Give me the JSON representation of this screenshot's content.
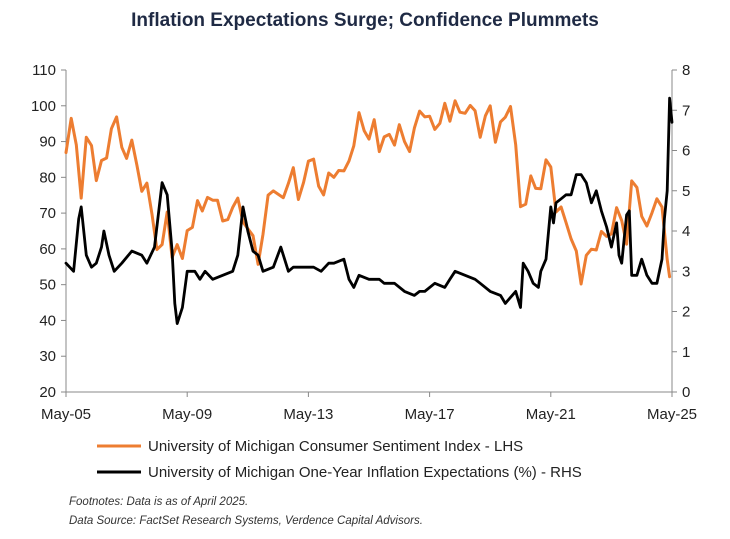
{
  "chart_data": {
    "type": "line",
    "title": "Inflation Expectations Surge; Confidence Plummets",
    "x_labels": [
      "May-05",
      "May-09",
      "May-13",
      "May-17",
      "May-21",
      "May-25"
    ],
    "x_range": [
      2005.33,
      2025.33
    ],
    "y_left": {
      "range": [
        20,
        110
      ],
      "ticks": [
        20,
        30,
        40,
        50,
        60,
        70,
        80,
        90,
        100,
        110
      ]
    },
    "y_right": {
      "range": [
        0,
        8
      ],
      "ticks": [
        0,
        1,
        2,
        3,
        4,
        5,
        6,
        7,
        8
      ]
    },
    "grid": false,
    "legend_placement": "bottom",
    "series": [
      {
        "name": "University of Michigan Consumer Sentiment Index - LHS",
        "axis": "left",
        "color": "#ED7D31",
        "points": [
          [
            2005.33,
            86.9
          ],
          [
            2005.5,
            96.5
          ],
          [
            2005.67,
            89.1
          ],
          [
            2005.83,
            74.2
          ],
          [
            2006.0,
            91.2
          ],
          [
            2006.17,
            88.9
          ],
          [
            2006.33,
            79.1
          ],
          [
            2006.5,
            84.7
          ],
          [
            2006.67,
            85.4
          ],
          [
            2006.83,
            93.6
          ],
          [
            2007.0,
            96.9
          ],
          [
            2007.17,
            88.4
          ],
          [
            2007.33,
            85.3
          ],
          [
            2007.5,
            90.4
          ],
          [
            2007.67,
            83.4
          ],
          [
            2007.83,
            76.1
          ],
          [
            2008.0,
            78.4
          ],
          [
            2008.17,
            69.5
          ],
          [
            2008.33,
            59.8
          ],
          [
            2008.5,
            61.2
          ],
          [
            2008.67,
            70.3
          ],
          [
            2008.83,
            57.6
          ],
          [
            2009.0,
            61.2
          ],
          [
            2009.17,
            57.3
          ],
          [
            2009.33,
            65.1
          ],
          [
            2009.5,
            66.0
          ],
          [
            2009.67,
            73.5
          ],
          [
            2009.83,
            70.6
          ],
          [
            2010.0,
            74.4
          ],
          [
            2010.17,
            73.6
          ],
          [
            2010.33,
            73.6
          ],
          [
            2010.5,
            67.8
          ],
          [
            2010.67,
            68.2
          ],
          [
            2010.83,
            71.6
          ],
          [
            2011.0,
            74.2
          ],
          [
            2011.17,
            67.5
          ],
          [
            2011.5,
            63.7
          ],
          [
            2011.67,
            55.7
          ],
          [
            2011.83,
            64.1
          ],
          [
            2012.0,
            75.0
          ],
          [
            2012.17,
            76.2
          ],
          [
            2012.5,
            74.3
          ],
          [
            2012.67,
            78.3
          ],
          [
            2012.83,
            82.7
          ],
          [
            2013.0,
            73.8
          ],
          [
            2013.17,
            78.6
          ],
          [
            2013.33,
            84.5
          ],
          [
            2013.5,
            85.1
          ],
          [
            2013.67,
            77.5
          ],
          [
            2013.83,
            75.1
          ],
          [
            2014.0,
            81.2
          ],
          [
            2014.17,
            80.0
          ],
          [
            2014.33,
            81.9
          ],
          [
            2014.5,
            81.8
          ],
          [
            2014.67,
            84.6
          ],
          [
            2014.83,
            88.8
          ],
          [
            2015.0,
            98.1
          ],
          [
            2015.17,
            93.0
          ],
          [
            2015.33,
            90.7
          ],
          [
            2015.5,
            96.1
          ],
          [
            2015.67,
            87.2
          ],
          [
            2015.83,
            91.3
          ],
          [
            2016.0,
            92.0
          ],
          [
            2016.17,
            89.0
          ],
          [
            2016.33,
            94.7
          ],
          [
            2016.5,
            90.0
          ],
          [
            2016.67,
            87.2
          ],
          [
            2016.83,
            93.8
          ],
          [
            2017.0,
            98.5
          ],
          [
            2017.17,
            96.9
          ],
          [
            2017.33,
            97.1
          ],
          [
            2017.5,
            93.4
          ],
          [
            2017.67,
            95.1
          ],
          [
            2017.83,
            100.7
          ],
          [
            2018.0,
            95.7
          ],
          [
            2018.17,
            101.4
          ],
          [
            2018.33,
            98.2
          ],
          [
            2018.5,
            97.9
          ],
          [
            2018.67,
            100.1
          ],
          [
            2018.83,
            98.6
          ],
          [
            2019.0,
            91.2
          ],
          [
            2019.17,
            97.2
          ],
          [
            2019.33,
            100.0
          ],
          [
            2019.5,
            89.8
          ],
          [
            2019.67,
            95.5
          ],
          [
            2019.83,
            96.8
          ],
          [
            2020.0,
            99.8
          ],
          [
            2020.17,
            89.1
          ],
          [
            2020.33,
            71.8
          ],
          [
            2020.5,
            72.5
          ],
          [
            2020.67,
            80.4
          ],
          [
            2020.83,
            76.9
          ],
          [
            2021.0,
            76.8
          ],
          [
            2021.17,
            84.9
          ],
          [
            2021.33,
            82.9
          ],
          [
            2021.5,
            70.3
          ],
          [
            2021.67,
            71.7
          ],
          [
            2021.83,
            67.4
          ],
          [
            2022.0,
            62.8
          ],
          [
            2022.17,
            59.4
          ],
          [
            2022.33,
            50.2
          ],
          [
            2022.5,
            58.2
          ],
          [
            2022.67,
            59.9
          ],
          [
            2022.83,
            59.7
          ],
          [
            2023.0,
            64.9
          ],
          [
            2023.17,
            63.5
          ],
          [
            2023.33,
            64.2
          ],
          [
            2023.5,
            71.5
          ],
          [
            2023.67,
            67.9
          ],
          [
            2023.83,
            61.3
          ],
          [
            2024.0,
            79.0
          ],
          [
            2024.17,
            77.2
          ],
          [
            2024.33,
            69.1
          ],
          [
            2024.5,
            66.4
          ],
          [
            2024.67,
            70.1
          ],
          [
            2024.83,
            74.0
          ],
          [
            2025.0,
            71.7
          ],
          [
            2025.17,
            57.0
          ],
          [
            2025.25,
            52.2
          ]
        ]
      },
      {
        "name": "University of Michigan One-Year Inflation Expectations (%) - RHS",
        "axis": "right",
        "color": "#000000",
        "points": [
          [
            2005.33,
            3.2
          ],
          [
            2005.58,
            3.0
          ],
          [
            2005.75,
            4.3
          ],
          [
            2005.83,
            4.6
          ],
          [
            2006.0,
            3.4
          ],
          [
            2006.17,
            3.1
          ],
          [
            2006.33,
            3.2
          ],
          [
            2006.5,
            3.6
          ],
          [
            2006.58,
            4.0
          ],
          [
            2006.75,
            3.4
          ],
          [
            2006.92,
            3.0
          ],
          [
            2007.17,
            3.2
          ],
          [
            2007.5,
            3.5
          ],
          [
            2007.83,
            3.4
          ],
          [
            2008.0,
            3.2
          ],
          [
            2008.25,
            3.6
          ],
          [
            2008.5,
            5.2
          ],
          [
            2008.67,
            4.9
          ],
          [
            2008.83,
            3.5
          ],
          [
            2008.92,
            2.2
          ],
          [
            2009.0,
            1.7
          ],
          [
            2009.17,
            2.1
          ],
          [
            2009.33,
            3.0
          ],
          [
            2009.58,
            3.0
          ],
          [
            2009.75,
            2.8
          ],
          [
            2009.92,
            3.0
          ],
          [
            2010.17,
            2.8
          ],
          [
            2010.5,
            2.9
          ],
          [
            2010.83,
            3.0
          ],
          [
            2011.0,
            3.4
          ],
          [
            2011.17,
            4.6
          ],
          [
            2011.33,
            4.0
          ],
          [
            2011.5,
            3.5
          ],
          [
            2011.67,
            3.4
          ],
          [
            2011.83,
            3.0
          ],
          [
            2012.17,
            3.1
          ],
          [
            2012.42,
            3.6
          ],
          [
            2012.67,
            3.0
          ],
          [
            2012.83,
            3.1
          ],
          [
            2013.17,
            3.1
          ],
          [
            2013.5,
            3.1
          ],
          [
            2013.75,
            3.0
          ],
          [
            2014.0,
            3.2
          ],
          [
            2014.17,
            3.2
          ],
          [
            2014.5,
            3.3
          ],
          [
            2014.67,
            2.8
          ],
          [
            2014.83,
            2.6
          ],
          [
            2015.0,
            2.9
          ],
          [
            2015.33,
            2.8
          ],
          [
            2015.67,
            2.8
          ],
          [
            2015.83,
            2.7
          ],
          [
            2016.17,
            2.7
          ],
          [
            2016.5,
            2.5
          ],
          [
            2016.83,
            2.4
          ],
          [
            2017.0,
            2.5
          ],
          [
            2017.17,
            2.5
          ],
          [
            2017.5,
            2.7
          ],
          [
            2017.83,
            2.6
          ],
          [
            2018.0,
            2.8
          ],
          [
            2018.17,
            3.0
          ],
          [
            2018.5,
            2.9
          ],
          [
            2018.83,
            2.8
          ],
          [
            2019.0,
            2.7
          ],
          [
            2019.33,
            2.5
          ],
          [
            2019.67,
            2.4
          ],
          [
            2019.83,
            2.2
          ],
          [
            2020.17,
            2.5
          ],
          [
            2020.33,
            2.1
          ],
          [
            2020.42,
            3.2
          ],
          [
            2020.58,
            3.0
          ],
          [
            2020.75,
            2.7
          ],
          [
            2020.92,
            2.6
          ],
          [
            2021.0,
            3.0
          ],
          [
            2021.17,
            3.3
          ],
          [
            2021.33,
            4.6
          ],
          [
            2021.42,
            4.2
          ],
          [
            2021.5,
            4.7
          ],
          [
            2021.67,
            4.8
          ],
          [
            2021.83,
            4.9
          ],
          [
            2022.0,
            4.9
          ],
          [
            2022.17,
            5.4
          ],
          [
            2022.33,
            5.4
          ],
          [
            2022.5,
            5.2
          ],
          [
            2022.67,
            4.7
          ],
          [
            2022.83,
            5.0
          ],
          [
            2023.0,
            4.5
          ],
          [
            2023.17,
            4.1
          ],
          [
            2023.33,
            3.6
          ],
          [
            2023.5,
            4.2
          ],
          [
            2023.58,
            3.4
          ],
          [
            2023.67,
            3.2
          ],
          [
            2023.83,
            4.4
          ],
          [
            2023.92,
            4.5
          ],
          [
            2024.0,
            2.9
          ],
          [
            2024.17,
            2.9
          ],
          [
            2024.33,
            3.3
          ],
          [
            2024.5,
            2.9
          ],
          [
            2024.67,
            2.7
          ],
          [
            2024.83,
            2.7
          ],
          [
            2025.0,
            3.3
          ],
          [
            2025.08,
            4.3
          ],
          [
            2025.17,
            5.0
          ],
          [
            2025.25,
            7.3
          ],
          [
            2025.33,
            6.7
          ]
        ]
      }
    ]
  },
  "legend": [
    {
      "label": "University of Michigan Consumer Sentiment Index - LHS",
      "color": "#ED7D31"
    },
    {
      "label": "University of Michigan One-Year Inflation Expectations (%) - RHS",
      "color": "#000000"
    }
  ],
  "footnotes": {
    "line1": "Footnotes: Data is as of April 2025.",
    "line2": "Data Source: FactSet Research Systems, Verdence Capital Advisors."
  }
}
